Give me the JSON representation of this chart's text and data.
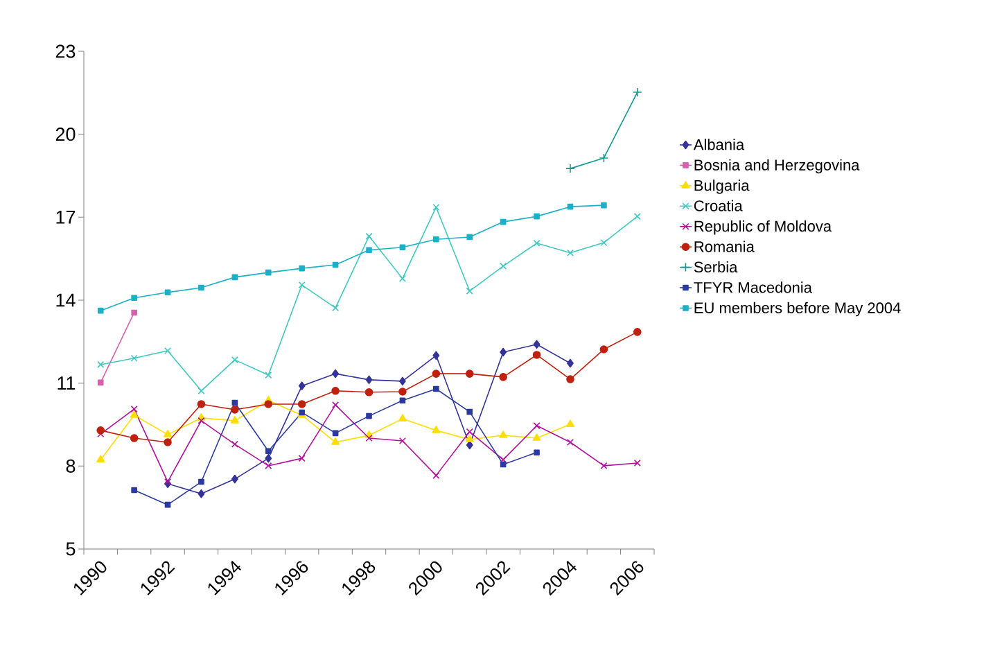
{
  "chart_data": {
    "type": "line",
    "categories": [
      "1990",
      null,
      "1992",
      null,
      "1994",
      null,
      "1996",
      null,
      "1998",
      null,
      "2000",
      null,
      "2002",
      null,
      "2004",
      null,
      "2006"
    ],
    "ylim": [
      5,
      23
    ],
    "yticks": [
      5,
      8,
      11,
      14,
      17,
      20,
      23
    ],
    "grid": false,
    "legend": "right",
    "series": [
      {
        "name": "Albania",
        "color": "#333399",
        "marker": "diamond",
        "values": [
          null,
          null,
          7.36,
          7.0,
          7.53,
          8.28,
          10.9,
          11.34,
          11.12,
          11.07,
          12.0,
          8.76,
          12.12,
          12.4,
          11.72,
          null,
          null
        ]
      },
      {
        "name": "Bosnia and Herzegovina",
        "color": "#d660b0",
        "marker": "square",
        "values": [
          11.02,
          13.55,
          null,
          null,
          null,
          null,
          null,
          null,
          null,
          null,
          null,
          null,
          null,
          null,
          null,
          null,
          null
        ]
      },
      {
        "name": "Bulgaria",
        "color": "#ffdd00",
        "marker": "triangle",
        "values": [
          8.23,
          9.84,
          9.14,
          9.74,
          9.64,
          10.37,
          9.84,
          8.86,
          9.11,
          9.71,
          9.29,
          8.96,
          9.11,
          9.01,
          9.51,
          null,
          null
        ]
      },
      {
        "name": "Croatia",
        "color": "#40c8c0",
        "marker": "cross",
        "values": [
          11.67,
          11.9,
          12.17,
          10.72,
          11.84,
          11.29,
          14.55,
          13.72,
          16.31,
          14.78,
          17.36,
          14.33,
          15.23,
          16.06,
          15.71,
          16.08,
          17.03
        ]
      },
      {
        "name": "Republic of Moldova",
        "color": "#b0119d",
        "marker": "cross",
        "values": [
          9.16,
          10.06,
          7.43,
          9.64,
          8.79,
          8.01,
          8.28,
          10.21,
          9.01,
          8.91,
          7.66,
          9.24,
          8.23,
          9.46,
          8.86,
          8.01,
          8.11
        ]
      },
      {
        "name": "Romania",
        "color": "#c0200e",
        "marker": "circle",
        "values": [
          9.29,
          9.01,
          8.86,
          10.24,
          10.04,
          10.24,
          10.24,
          10.72,
          10.67,
          10.69,
          11.34,
          11.34,
          11.22,
          12.02,
          11.14,
          12.22,
          12.85
        ]
      },
      {
        "name": "Serbia",
        "color": "#139a92",
        "marker": "plus",
        "values": [
          null,
          null,
          null,
          null,
          null,
          null,
          null,
          null,
          null,
          null,
          null,
          null,
          null,
          null,
          18.76,
          19.14,
          21.52
        ]
      },
      {
        "name": "TFYR Macedonia",
        "color": "#2b3a9e",
        "marker": "square",
        "values": [
          null,
          7.13,
          6.6,
          7.43,
          10.29,
          8.54,
          9.94,
          9.19,
          9.81,
          10.37,
          10.79,
          9.96,
          8.06,
          8.49,
          null,
          null,
          null
        ]
      },
      {
        "name": "EU members before May 2004",
        "color": "#1ab0c8",
        "marker": "square",
        "values": [
          13.62,
          14.08,
          14.28,
          14.45,
          14.83,
          15.0,
          15.15,
          15.28,
          15.81,
          15.91,
          16.2,
          16.28,
          16.83,
          17.03,
          17.38,
          17.43,
          null
        ]
      }
    ]
  }
}
